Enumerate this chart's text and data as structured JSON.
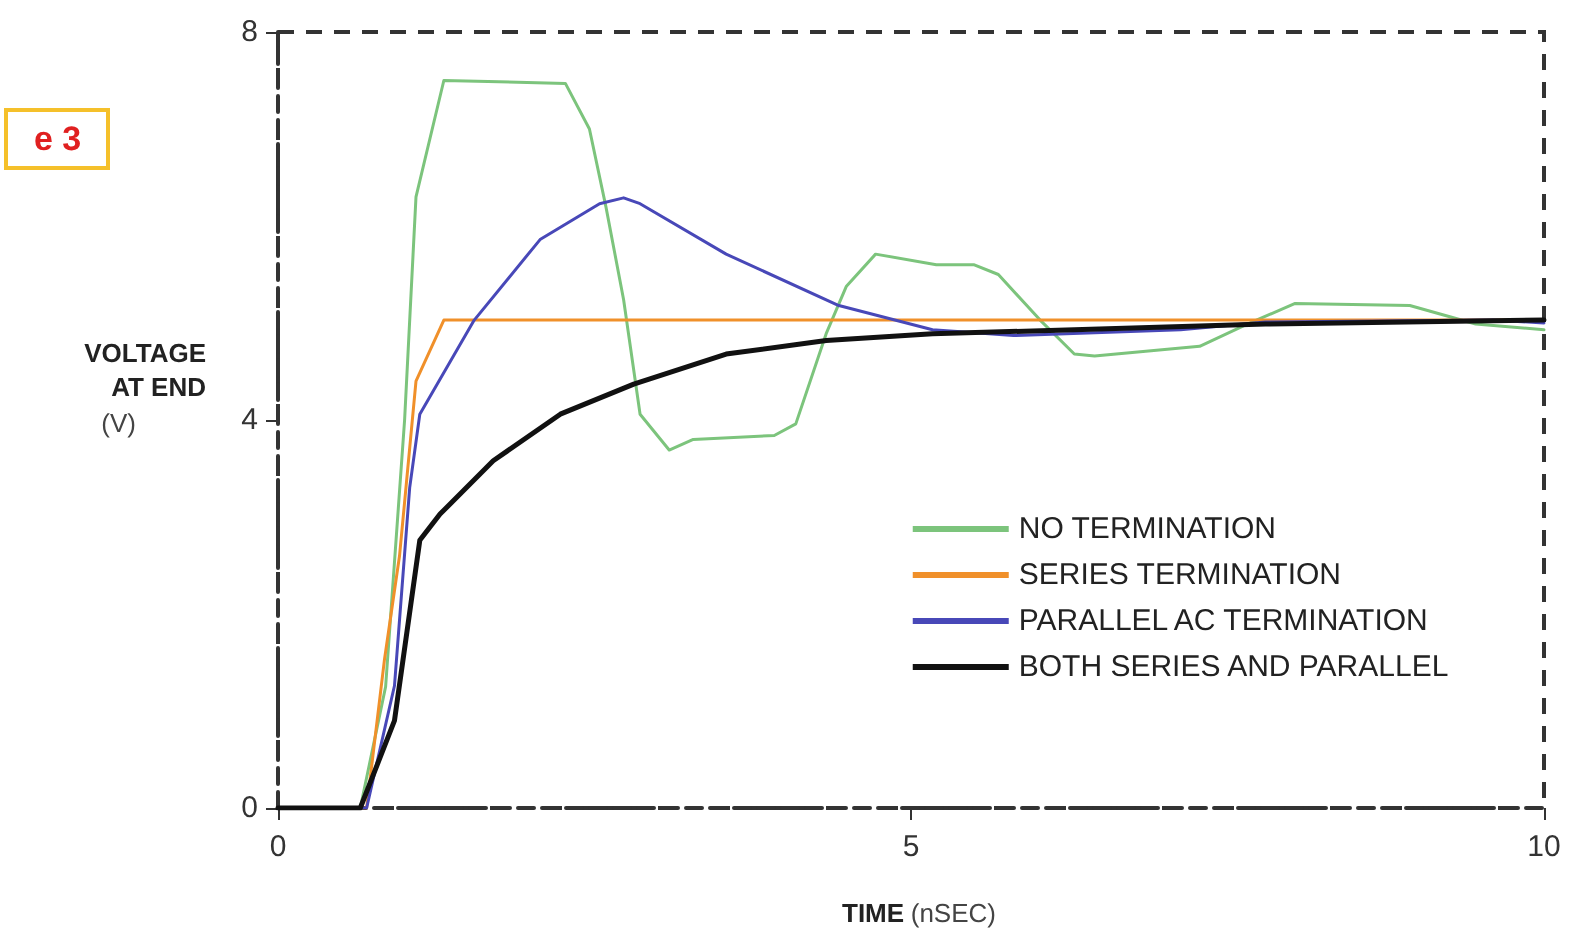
{
  "chart_data": {
    "type": "line",
    "xlabel": "TIME (nSEC)",
    "ylabel": "VOLTAGE\nAT END\n(V)",
    "annotations": [
      "e 3"
    ],
    "xlim": [
      0,
      10
    ],
    "xticks": [
      0,
      5,
      10
    ],
    "ylim": [
      0,
      8
    ],
    "yticks": [
      0,
      4,
      8
    ],
    "legend": "bottom right",
    "marker": "none",
    "line_style": "solid",
    "series": [
      {
        "name": "NO TERMINATION",
        "color": "#7cc47c",
        "x": [
          0,
          0.65,
          0.85,
          1.0,
          1.09,
          1.31,
          2.27,
          2.46,
          2.59,
          2.73,
          2.86,
          3.09,
          3.28,
          3.92,
          4.09,
          4.33,
          4.49,
          4.72,
          5.2,
          5.5,
          5.69,
          6.02,
          6.29,
          6.45,
          7.28,
          7.66,
          8.03,
          8.94,
          9.46,
          10
        ],
        "values": [
          0,
          0,
          1.25,
          4.0,
          6.3,
          7.5,
          7.47,
          7.0,
          6.2,
          5.24,
          4.06,
          3.69,
          3.8,
          3.84,
          3.96,
          4.89,
          5.38,
          5.71,
          5.6,
          5.6,
          5.5,
          5.03,
          4.68,
          4.66,
          4.76,
          4.99,
          5.2,
          5.18,
          4.99,
          4.93
        ]
      },
      {
        "name": "SERIES TERMINATION",
        "color": "#f0902a",
        "x": [
          0,
          0.7,
          0.84,
          0.96,
          1.09,
          1.31,
          10
        ],
        "values": [
          0,
          0,
          1.52,
          2.6,
          4.4,
          5.03,
          5.03
        ]
      },
      {
        "name": "PARALLEL AC TERMINATION",
        "color": "#4848b8",
        "x": [
          0,
          0.7,
          0.92,
          1.04,
          1.12,
          1.55,
          2.07,
          2.54,
          2.73,
          2.86,
          3.54,
          4.43,
          5.17,
          5.81,
          7.13,
          7.8,
          9.6,
          10
        ],
        "values": [
          0,
          0,
          1.26,
          3.3,
          4.06,
          5.03,
          5.86,
          6.23,
          6.29,
          6.23,
          5.71,
          5.18,
          4.93,
          4.87,
          4.93,
          5.01,
          5.03,
          5.0
        ]
      },
      {
        "name": "BOTH SERIES AND PARALLEL",
        "color": "#111111",
        "x": [
          0,
          0.65,
          0.92,
          1.12,
          1.28,
          1.7,
          2.23,
          2.81,
          3.54,
          4.33,
          5.17,
          6.29,
          7.8,
          10
        ],
        "values": [
          0,
          0,
          0.9,
          2.76,
          3.03,
          3.58,
          4.06,
          4.37,
          4.68,
          4.82,
          4.89,
          4.93,
          4.99,
          5.03
        ]
      }
    ]
  }
}
